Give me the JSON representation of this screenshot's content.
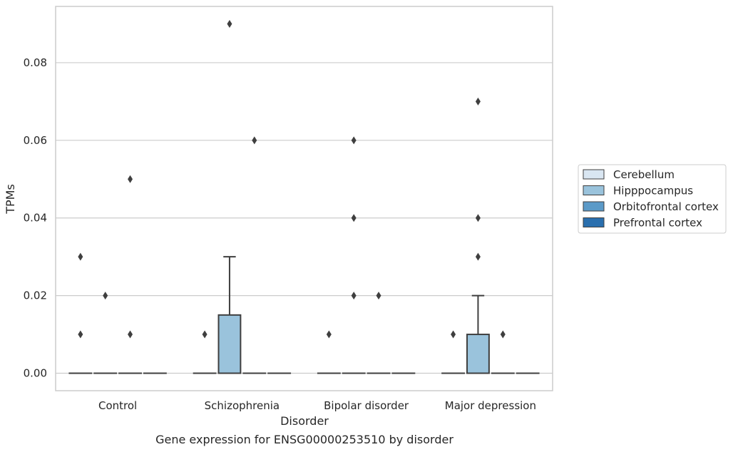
{
  "chart_data": {
    "type": "box",
    "title": "",
    "caption": "Gene expression for ENSG00000253510 by disorder",
    "xlabel": "Disorder",
    "ylabel": "TPMs",
    "ylim": [
      -0.0045,
      0.0945
    ],
    "yticks": [
      0.0,
      0.02,
      0.04,
      0.06,
      0.08
    ],
    "ytick_labels": [
      "0.00",
      "0.02",
      "0.04",
      "0.06",
      "0.08"
    ],
    "grid": true,
    "legend_position": "right",
    "categories": [
      "Control",
      "Schizophrenia",
      "Bipolar disorder",
      "Major depression"
    ],
    "series": [
      {
        "name": "Cerebellum",
        "color": "#d9e6f2",
        "boxes": [
          {
            "q1": 0,
            "median": 0,
            "q3": 0,
            "whisker_low": 0,
            "whisker_high": 0,
            "outliers": [
              0.01,
              0.03
            ]
          },
          {
            "q1": 0,
            "median": 0,
            "q3": 0,
            "whisker_low": 0,
            "whisker_high": 0,
            "outliers": [
              0.01
            ]
          },
          {
            "q1": 0,
            "median": 0,
            "q3": 0,
            "whisker_low": 0,
            "whisker_high": 0,
            "outliers": [
              0.01
            ]
          },
          {
            "q1": 0,
            "median": 0,
            "q3": 0,
            "whisker_low": 0,
            "whisker_high": 0,
            "outliers": [
              0.01
            ]
          }
        ]
      },
      {
        "name": "Hipppocampus",
        "color": "#9ac3dc",
        "boxes": [
          {
            "q1": 0,
            "median": 0,
            "q3": 0,
            "whisker_low": 0,
            "whisker_high": 0,
            "outliers": [
              0.02
            ]
          },
          {
            "q1": 0,
            "median": 0,
            "q3": 0.015,
            "whisker_low": 0,
            "whisker_high": 0.03,
            "outliers": [
              0.09
            ]
          },
          {
            "q1": 0,
            "median": 0,
            "q3": 0,
            "whisker_low": 0,
            "whisker_high": 0,
            "outliers": [
              0.02,
              0.04,
              0.06
            ]
          },
          {
            "q1": 0,
            "median": 0,
            "q3": 0.01,
            "whisker_low": 0,
            "whisker_high": 0.02,
            "outliers": [
              0.03,
              0.04,
              0.07
            ]
          }
        ]
      },
      {
        "name": "Orbitofrontal cortex",
        "color": "#5b9ac8",
        "boxes": [
          {
            "q1": 0,
            "median": 0,
            "q3": 0,
            "whisker_low": 0,
            "whisker_high": 0,
            "outliers": [
              0.01,
              0.05
            ]
          },
          {
            "q1": 0,
            "median": 0,
            "q3": 0,
            "whisker_low": 0,
            "whisker_high": 0,
            "outliers": [
              0.06
            ]
          },
          {
            "q1": 0,
            "median": 0,
            "q3": 0,
            "whisker_low": 0,
            "whisker_high": 0,
            "outliers": [
              0.02
            ]
          },
          {
            "q1": 0,
            "median": 0,
            "q3": 0,
            "whisker_low": 0,
            "whisker_high": 0,
            "outliers": [
              0.01
            ]
          }
        ]
      },
      {
        "name": "Prefrontal cortex",
        "color": "#2a6fae",
        "boxes": [
          {
            "q1": 0,
            "median": 0,
            "q3": 0,
            "whisker_low": 0,
            "whisker_high": 0,
            "outliers": []
          },
          {
            "q1": 0,
            "median": 0,
            "q3": 0,
            "whisker_low": 0,
            "whisker_high": 0,
            "outliers": []
          },
          {
            "q1": 0,
            "median": 0,
            "q3": 0,
            "whisker_low": 0,
            "whisker_high": 0,
            "outliers": []
          },
          {
            "q1": 0,
            "median": 0,
            "q3": 0,
            "whisker_low": 0,
            "whisker_high": 0,
            "outliers": []
          }
        ]
      }
    ]
  }
}
